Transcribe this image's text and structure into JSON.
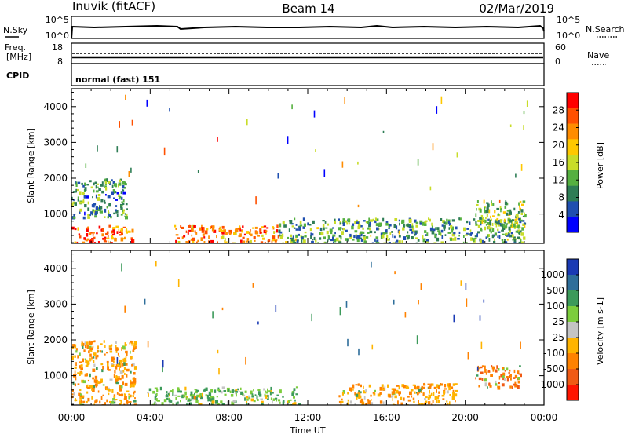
{
  "header": {
    "station": "Inuvik (fitACF)",
    "beam": "Beam 14",
    "date": "02/Mar/2019"
  },
  "noise_panel": {
    "left_label": "N.Sky",
    "right_label": "N.Search",
    "left_ticks": [
      "10^5",
      "10^0"
    ],
    "right_ticks": [
      "10^5",
      "10^0"
    ]
  },
  "freq_panel": {
    "left_label_line1": "Freq.",
    "left_label_line2": "[MHz]",
    "right_label": "Nave",
    "left_ticks": [
      "18",
      "8"
    ],
    "right_ticks": [
      "60",
      "0"
    ]
  },
  "cpid_panel": {
    "label": "CPID",
    "text": "normal (fast) 151"
  },
  "chart_data": [
    {
      "type": "heatmap",
      "title": "",
      "xlabel": "Time UT",
      "ylabel": "Slant Range [km]",
      "xlim": [
        "00:00",
        "24:00"
      ],
      "ylim": [
        180,
        4500
      ],
      "x_ticks": [
        "00:00",
        "04:00",
        "08:00",
        "12:00",
        "16:00",
        "20:00",
        "00:00"
      ],
      "y_ticks": [
        1000,
        2000,
        3000,
        4000
      ],
      "colorbar": {
        "label": "Power [dB]",
        "range": [
          0,
          32
        ],
        "ticks": [
          "4",
          "8",
          "12",
          "16",
          "20",
          "24",
          "28"
        ],
        "colors": [
          "#0000ff",
          "#1f4fb0",
          "#2e7d55",
          "#55b040",
          "#c8dc28",
          "#ffc800",
          "#ff8c00",
          "#ff5000",
          "#ff0000"
        ]
      },
      "regions": [
        {
          "t0": 0.0,
          "t1": 3.1,
          "r0": 180,
          "r1": 700,
          "value": 26
        },
        {
          "t0": 0.0,
          "t1": 2.8,
          "r0": 900,
          "r1": 2000,
          "value": 10
        },
        {
          "t0": 5.2,
          "t1": 10.5,
          "r0": 180,
          "r1": 700,
          "value": 24
        },
        {
          "t0": 10.5,
          "t1": 23.0,
          "r0": 180,
          "r1": 900,
          "value": 11
        },
        {
          "t0": 20.5,
          "t1": 23.0,
          "r0": 600,
          "r1": 1400,
          "value": 14
        }
      ]
    },
    {
      "type": "heatmap",
      "title": "",
      "xlabel": "Time UT",
      "ylabel": "Slant Range [km]",
      "xlim": [
        "00:00",
        "24:00"
      ],
      "ylim": [
        180,
        4500
      ],
      "x_ticks": [
        "00:00",
        "04:00",
        "08:00",
        "12:00",
        "16:00",
        "20:00",
        "00:00"
      ],
      "y_ticks": [
        1000,
        2000,
        3000,
        4000
      ],
      "colorbar": {
        "label": "Velocity [m s-1]",
        "ticks": [
          "1000",
          "500",
          "100",
          "25",
          "-25",
          "-100",
          "-500",
          "-1000"
        ],
        "colors": [
          "#1a3ab4",
          "#2e6e9a",
          "#3c9a5a",
          "#7ccd3c",
          "#c4c4c4",
          "#ffb400",
          "#ff8200",
          "#f05a14",
          "#ff1400"
        ]
      },
      "regions": [
        {
          "t0": 0.0,
          "t1": 3.2,
          "r0": 180,
          "r1": 2000,
          "value": -100
        },
        {
          "t0": 3.8,
          "t1": 11.5,
          "r0": 180,
          "r1": 700,
          "value": 100
        },
        {
          "t0": 13.5,
          "t1": 19.5,
          "r0": 180,
          "r1": 800,
          "value": -100
        },
        {
          "t0": 20.5,
          "t1": 22.8,
          "r0": 700,
          "r1": 1300,
          "value": -500
        }
      ]
    }
  ]
}
